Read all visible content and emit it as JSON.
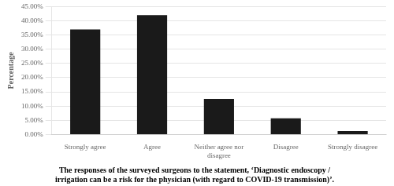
{
  "chart_data": {
    "type": "bar",
    "categories": [
      "Strongly agree",
      "Agree",
      "Neither agree nor\ndisagree",
      "Disagree",
      "Strongly disagree"
    ],
    "values": [
      37.0,
      42.0,
      12.5,
      5.7,
      1.2
    ],
    "color": "#1a1a1a",
    "ylabel": "Percentage",
    "ylim": [
      0,
      45
    ],
    "yticks": [
      {
        "value": 0,
        "label": "0.00%"
      },
      {
        "value": 5,
        "label": "5.00%"
      },
      {
        "value": 10,
        "label": "10.00%"
      },
      {
        "value": 15,
        "label": "15.00%"
      },
      {
        "value": 20,
        "label": "20.00%"
      },
      {
        "value": 25,
        "label": "25.00%"
      },
      {
        "value": 30,
        "label": "30.00%"
      },
      {
        "value": 35,
        "label": "35.00%"
      },
      {
        "value": 40,
        "label": "40.00%"
      },
      {
        "value": 45,
        "label": "45.00%"
      }
    ],
    "grid": true,
    "caption": "The responses of the surveyed surgeons to the statement, ‘Diagnostic endoscopy /\nirrigation can be a risk for the physician (with regard to COVID-19 transmission)’."
  }
}
